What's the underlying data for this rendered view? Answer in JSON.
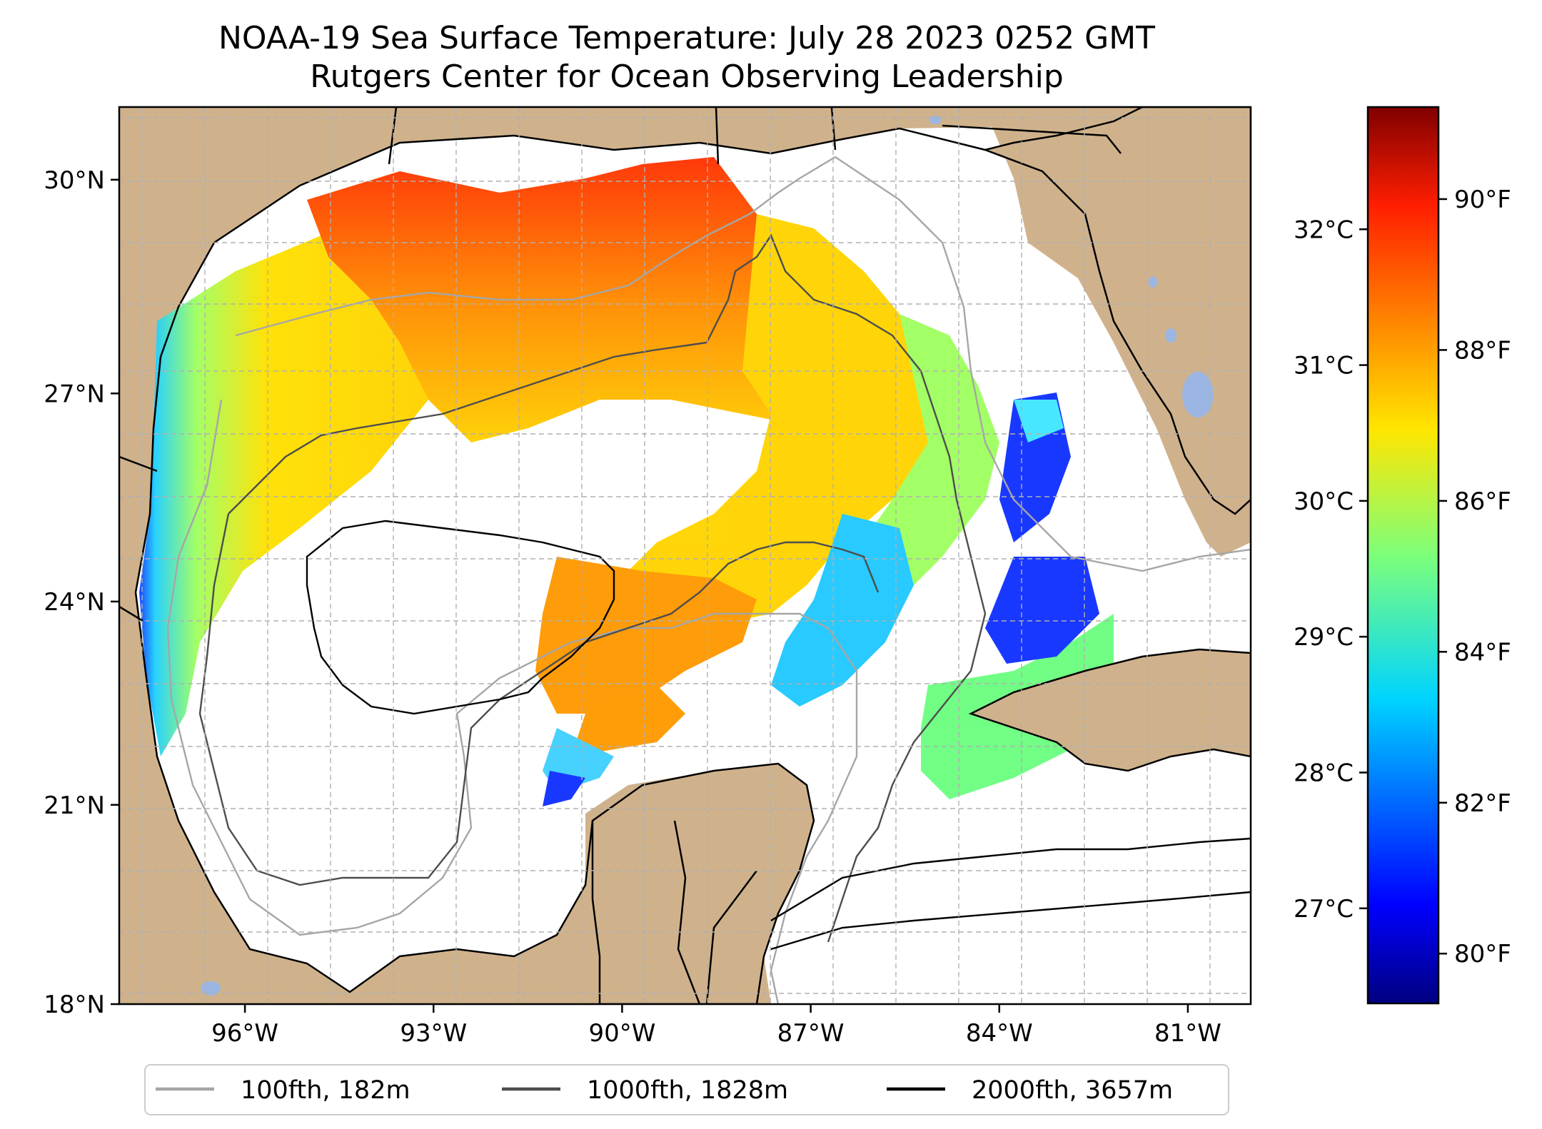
{
  "title": {
    "line1": "NOAA-19 Sea Surface Temperature: July 28 2023 0252 GMT",
    "line2": "Rutgers Center for Ocean Observing Leadership"
  },
  "map": {
    "lon_range": [
      -98.0,
      -80.0
    ],
    "lat_range": [
      18.0,
      31.0
    ],
    "lon_ticks": [
      {
        "value": -96,
        "label": "96°W"
      },
      {
        "value": -93,
        "label": "93°W"
      },
      {
        "value": -90,
        "label": "90°W"
      },
      {
        "value": -87,
        "label": "87°W"
      },
      {
        "value": -84,
        "label": "84°W"
      },
      {
        "value": -81,
        "label": "81°W"
      }
    ],
    "lat_ticks": [
      {
        "value": 30,
        "label": "30°N"
      },
      {
        "value": 27,
        "label": "27°N"
      },
      {
        "value": 24,
        "label": "24°N"
      },
      {
        "value": 21,
        "label": "21°N"
      },
      {
        "value": 18,
        "label": "18°N"
      }
    ],
    "gridlines": true,
    "land_color": "#cfb28c",
    "ocean_color": "#ffffff",
    "lake_color": "#9bb6e3"
  },
  "legend": {
    "placement": "bottom",
    "items": [
      {
        "label": "100fth, 182m",
        "color": "#a6a6a6"
      },
      {
        "label": "1000fth, 1828m",
        "color": "#4d4d4d"
      },
      {
        "label": "2000fth, 3657m",
        "color": "#000000"
      }
    ]
  },
  "colorbar": {
    "colormap": "jet",
    "range_c": [
      26.3,
      32.9
    ],
    "celsius_ticks": [
      {
        "value": 27,
        "label": "27°C"
      },
      {
        "value": 28,
        "label": "28°C"
      },
      {
        "value": 29,
        "label": "29°C"
      },
      {
        "value": 30,
        "label": "30°C"
      },
      {
        "value": 31,
        "label": "31°C"
      },
      {
        "value": 32,
        "label": "32°C"
      }
    ],
    "fahrenheit_ticks": [
      {
        "value": 80,
        "label": "80°F"
      },
      {
        "value": 82,
        "label": "82°F"
      },
      {
        "value": 84,
        "label": "84°F"
      },
      {
        "value": 86,
        "label": "86°F"
      },
      {
        "value": 88,
        "label": "88°F"
      },
      {
        "value": 90,
        "label": "90°F"
      }
    ]
  }
}
